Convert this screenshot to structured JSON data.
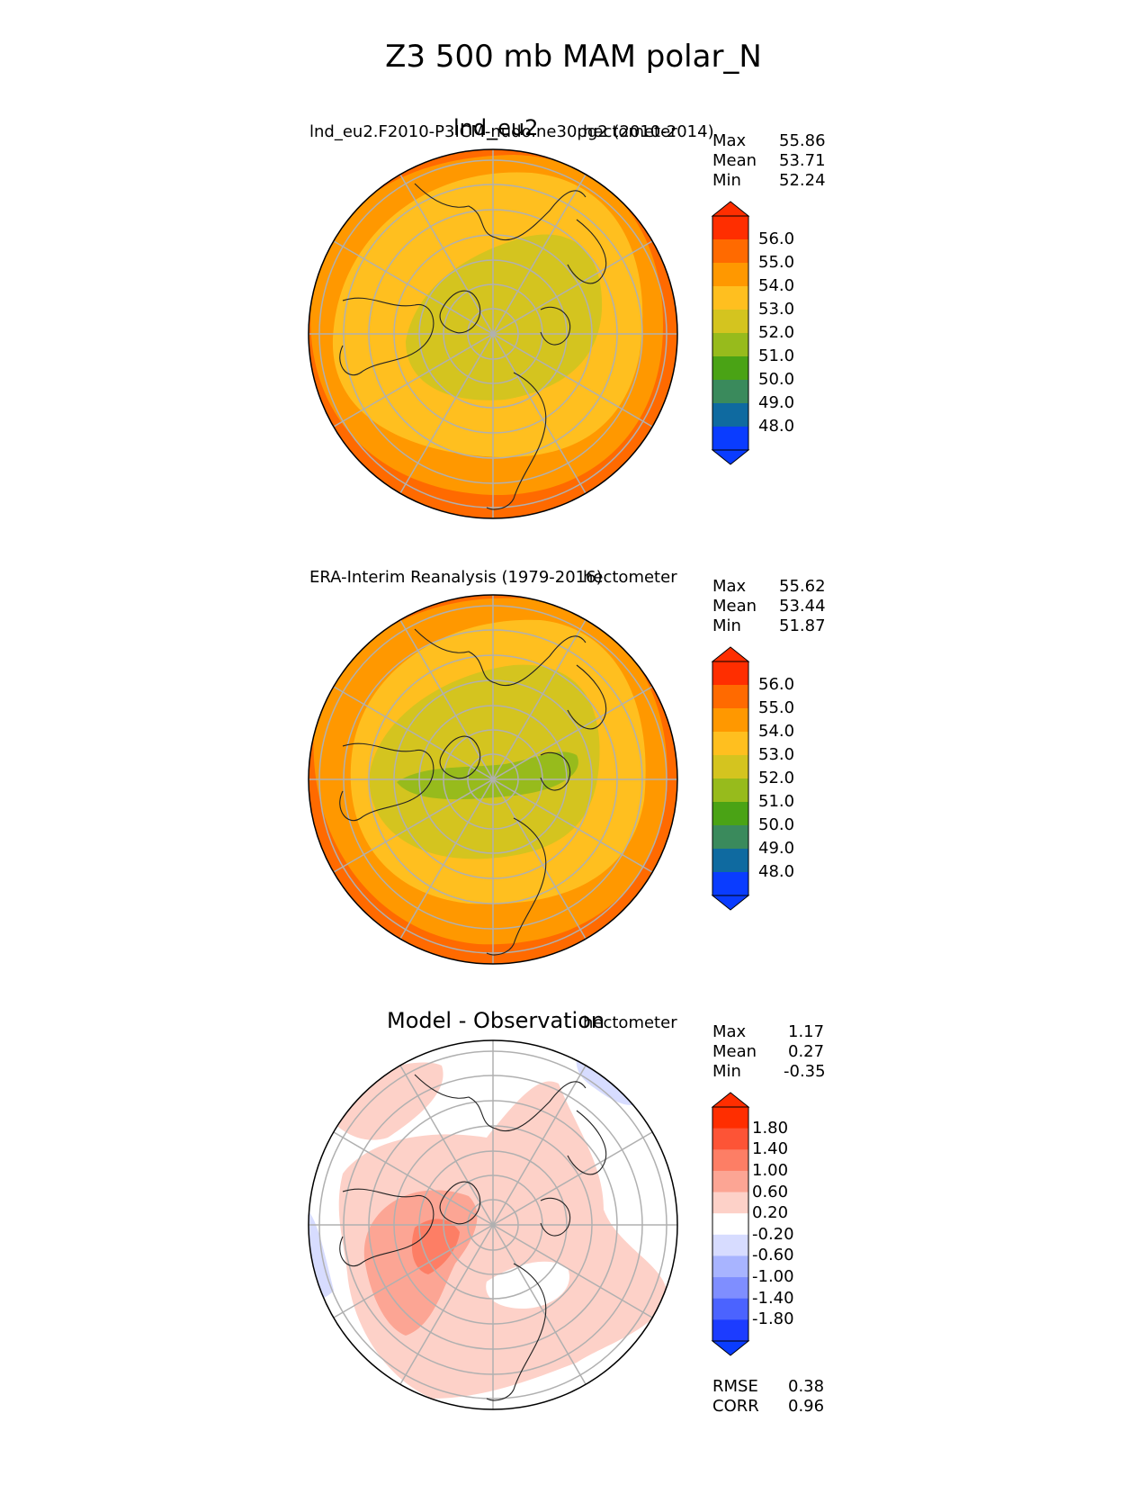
{
  "figure": {
    "title": "Z3 500 mb MAM polar_N"
  },
  "panels": [
    {
      "id": "test",
      "title": "lnd_eu2",
      "subtitle_left": "lnd_eu2.F2010-P3ICM-nudo.ne30pg2 (2010-2014)",
      "units": "hectometer",
      "stats": [
        {
          "label": "Max",
          "value": "55.86"
        },
        {
          "label": "Mean",
          "value": "53.71"
        },
        {
          "label": "Min",
          "value": "52.24"
        }
      ],
      "colorbar": {
        "ticks": [
          "56.0",
          "55.0",
          "54.0",
          "53.0",
          "52.0",
          "51.0",
          "50.0",
          "49.0",
          "48.0"
        ],
        "colors": [
          "#ff2e00",
          "#ff6a00",
          "#ff9800",
          "#ffbf1f",
          "#d4c41f",
          "#97bb1c",
          "#4aa315",
          "#3a8a5c",
          "#0f6aa0",
          "#0a3cff"
        ],
        "extend_colors": {
          "max": "#ff2e00",
          "min": "#0a3cff"
        }
      }
    },
    {
      "id": "ref",
      "title": "",
      "subtitle_left": "ERA-Interim Reanalysis (1979-2016)",
      "units": "hectometer",
      "stats": [
        {
          "label": "Max",
          "value": "55.62"
        },
        {
          "label": "Mean",
          "value": "53.44"
        },
        {
          "label": "Min",
          "value": "51.87"
        }
      ],
      "colorbar": {
        "ticks": [
          "56.0",
          "55.0",
          "54.0",
          "53.0",
          "52.0",
          "51.0",
          "50.0",
          "49.0",
          "48.0"
        ],
        "colors": [
          "#ff2e00",
          "#ff6a00",
          "#ff9800",
          "#ffbf1f",
          "#d4c41f",
          "#97bb1c",
          "#4aa315",
          "#3a8a5c",
          "#0f6aa0",
          "#0a3cff"
        ],
        "extend_colors": {
          "max": "#ff2e00",
          "min": "#0a3cff"
        }
      }
    },
    {
      "id": "diff",
      "title": "Model - Observation",
      "subtitle_left": "",
      "units": "hectometer",
      "stats": [
        {
          "label": "Max",
          "value": "1.17"
        },
        {
          "label": "Mean",
          "value": "0.27"
        },
        {
          "label": "Min",
          "value": "-0.35"
        }
      ],
      "colorbar": {
        "ticks": [
          "1.80",
          "1.40",
          "1.00",
          "0.60",
          "0.20",
          "-0.20",
          "-0.60",
          "-1.00",
          "-1.40",
          "-1.80"
        ],
        "colors": [
          "#ff2e00",
          "#fd5436",
          "#fd7e65",
          "#fca594",
          "#fdd1c8",
          "#ffffff",
          "#d7dcff",
          "#a8b4ff",
          "#7f8eff",
          "#4b63ff",
          "#1c3cff"
        ],
        "extend_colors": {
          "max": "#ff2e00",
          "min": "#0a3cff"
        }
      },
      "metrics": [
        {
          "label": "RMSE",
          "value": "0.38"
        },
        {
          "label": "CORR",
          "value": "0.96"
        }
      ]
    }
  ],
  "chart_data": [
    {
      "type": "heatmap",
      "projection": "north polar stereographic",
      "title": "lnd_eu2",
      "subtitle": "lnd_eu2.F2010-P3ICM-nudo.ne30pg2 (2010-2014)",
      "units": "hectometer",
      "levels": [
        48,
        49,
        50,
        51,
        52,
        53,
        54,
        55,
        56
      ],
      "max": 55.86,
      "mean": 53.71,
      "min": 52.24
    },
    {
      "type": "heatmap",
      "projection": "north polar stereographic",
      "subtitle": "ERA-Interim Reanalysis (1979-2016)",
      "units": "hectometer",
      "levels": [
        48,
        49,
        50,
        51,
        52,
        53,
        54,
        55,
        56
      ],
      "max": 55.62,
      "mean": 53.44,
      "min": 51.87
    },
    {
      "type": "heatmap",
      "projection": "north polar stereographic",
      "title": "Model - Observation",
      "units": "hectometer",
      "levels": [
        -1.8,
        -1.4,
        -1.0,
        -0.6,
        -0.2,
        0.2,
        0.6,
        1.0,
        1.4,
        1.8
      ],
      "max": 1.17,
      "mean": 0.27,
      "min": -0.35,
      "rmse": 0.38,
      "corr": 0.96
    }
  ]
}
